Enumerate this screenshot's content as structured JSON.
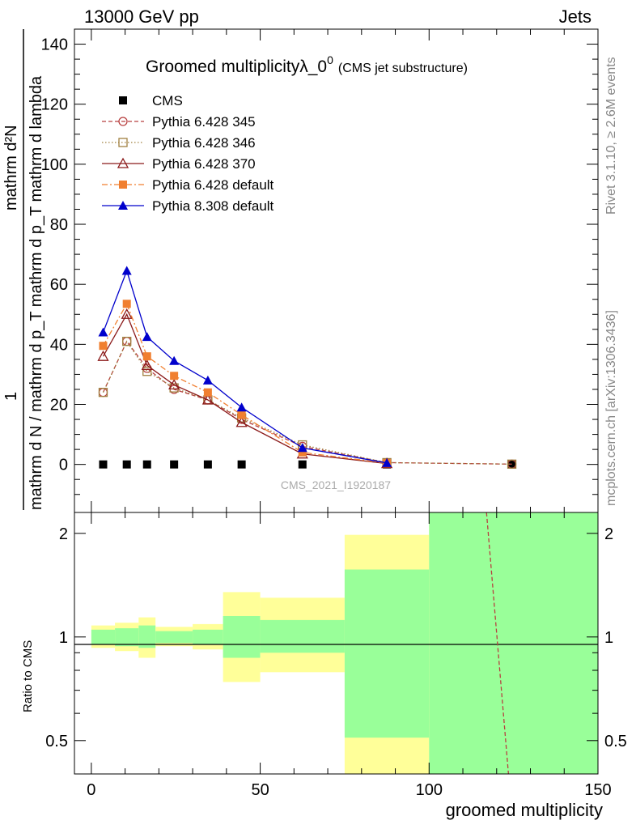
{
  "header": {
    "left": "13000 GeV pp",
    "right": "Jets",
    "side_top": "Rivet 3.1.10, ≥ 2.6M events",
    "side_bottom": "mcplots.cern.ch [arXiv:1306.3436]"
  },
  "chart_data": {
    "type": "line",
    "title": "Groomed multiplicityλ_0",
    "title_sup": "0",
    "subtitle": "(CMS jet substructure)",
    "watermark": "CMS_2021_I1920187",
    "ylabel_numerator": "mathrm d²N",
    "ylabel_denominator": "mathrm d N / mathrm d p_T mathrm d p_T mathrm d lambda",
    "ylabel_one": "1",
    "xlabel": "groomed multiplicity",
    "ratio_ylabel": "Ratio to CMS",
    "xlim": [
      -5,
      150
    ],
    "ylim": [
      -16,
      145
    ],
    "ratio_ylim": [
      0.4,
      2.3
    ],
    "x_ticks": [
      "0",
      "50",
      "100",
      "150"
    ],
    "y_ticks": [
      "0",
      "20",
      "40",
      "60",
      "80",
      "100",
      "120",
      "140"
    ],
    "ratio_ticks": [
      "0.5",
      "1",
      "2"
    ],
    "legend_position": "top-left",
    "x": [
      3.5,
      10.5,
      16.5,
      24.5,
      34.5,
      44.5,
      62.5,
      87.5,
      124.5
    ],
    "series": [
      {
        "name": "CMS",
        "color": "#000000",
        "marker": "square-filled",
        "dash": "none",
        "values": [
          0,
          0,
          0,
          0,
          0,
          0,
          0,
          0,
          0
        ]
      },
      {
        "name": "Pythia 6.428 345",
        "color": "#b84040",
        "marker": "circle-open",
        "dash": "dashed",
        "values": [
          24,
          41,
          32,
          25,
          21.5,
          15,
          6,
          0.6,
          0.1
        ]
      },
      {
        "name": "Pythia 6.428 346",
        "color": "#a08040",
        "marker": "square-open",
        "dash": "dotted",
        "values": [
          24,
          41,
          31,
          25.5,
          21.5,
          15.5,
          6.5,
          0.6,
          0.1
        ]
      },
      {
        "name": "Pythia 6.428 370",
        "color": "#8b1a1a",
        "marker": "triangle-open",
        "dash": "solid",
        "values": [
          36,
          50,
          33,
          26.5,
          21.5,
          14,
          3.5,
          0.3,
          null
        ]
      },
      {
        "name": "Pythia 6.428 default",
        "color": "#f07f30",
        "marker": "square-filled",
        "dash": "dashdot",
        "values": [
          39.5,
          53.5,
          36,
          29.5,
          24,
          16.5,
          4,
          0.4,
          null
        ]
      },
      {
        "name": "Pythia 8.308 default",
        "color": "#0000cc",
        "marker": "triangle-filled",
        "dash": "solid",
        "values": [
          44,
          64.5,
          42.5,
          34.5,
          28,
          19,
          5.5,
          0.5,
          null
        ]
      }
    ],
    "ratio_bands": [
      {
        "x0": 0,
        "x1": 7,
        "inner": [
          0.95,
          1.05
        ],
        "outer": [
          0.93,
          1.08
        ]
      },
      {
        "x0": 7,
        "x1": 14,
        "inner": [
          0.94,
          1.06
        ],
        "outer": [
          0.91,
          1.1
        ]
      },
      {
        "x0": 14,
        "x1": 19,
        "inner": [
          0.93,
          1.08
        ],
        "outer": [
          0.87,
          1.14
        ]
      },
      {
        "x0": 19,
        "x1": 30,
        "inner": [
          0.96,
          1.04
        ],
        "outer": [
          0.94,
          1.07
        ]
      },
      {
        "x0": 30,
        "x1": 39,
        "inner": [
          0.95,
          1.05
        ],
        "outer": [
          0.92,
          1.09
        ]
      },
      {
        "x0": 39,
        "x1": 50,
        "inner": [
          0.87,
          1.15
        ],
        "outer": [
          0.74,
          1.35
        ]
      },
      {
        "x0": 50,
        "x1": 75,
        "inner": [
          0.9,
          1.12
        ],
        "outer": [
          0.79,
          1.3
        ]
      },
      {
        "x0": 75,
        "x1": 100,
        "inner": [
          0.51,
          1.57
        ],
        "outer": [
          0.4,
          1.98
        ]
      },
      {
        "x0": 100,
        "x1": 150,
        "inner": [
          0.4,
          2.3
        ],
        "outer": [
          0.4,
          2.3
        ]
      }
    ],
    "ratio_line": {
      "x": [
        117,
        123.5
      ],
      "y": [
        2.3,
        0.4
      ],
      "color": "#b84040"
    }
  }
}
